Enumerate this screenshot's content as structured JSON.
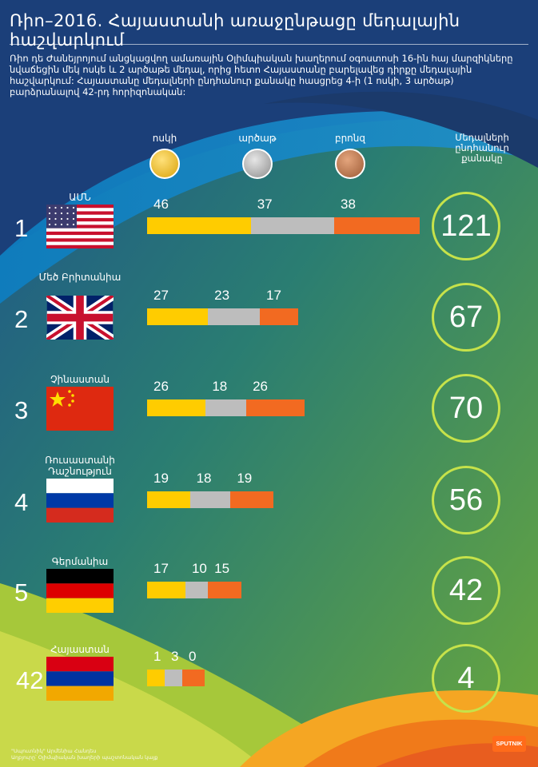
{
  "header": {
    "title": "Ռիո–2016. Հայաստանի առաջընթացը մեդալային հաշվարկում",
    "intro": "Ռիո դե Ժանեյրոյում անցկացվող ամառային Օլիմպիական խաղերում օգոստոսի 16-ին հայ մարզիկները նվաճեցին մեկ ոսկե և 2 արծաթե մեդալ, որից հետո Հայաստանը բարելավեց դիրքը մեդալային հաշվարկում: Հայաստանը մեդալների ընդհանուր քանակը հասցրեց 4-ի (1 ոսկի, 3 արծաթ) բարձրանալով 42-րդ հորիզոնական:"
  },
  "medals": {
    "gold": "ոսկի",
    "silver": "արծաթ",
    "bronze": "բրոնզ",
    "total": "Մեդալների ընդհանուր քանակը"
  },
  "colors": {
    "gold": "#ffcc00",
    "silver": "#bdbdbd",
    "bronze": "#f26a21",
    "ring": "#c6e24a"
  },
  "rows": [
    {
      "rank": "1",
      "country": "ԱՄՆ",
      "flag": "usa-flag",
      "gold": 46,
      "silver": 37,
      "bronze": 38,
      "total": "121"
    },
    {
      "rank": "2",
      "country": "Մեծ Բրիտանիա",
      "flag": "uk-flag",
      "gold": 27,
      "silver": 23,
      "bronze": 17,
      "total": "67"
    },
    {
      "rank": "3",
      "country": "Չինաստան",
      "flag": "china-flag",
      "gold": 26,
      "silver": 18,
      "bronze": 26,
      "total": "70"
    },
    {
      "rank": "4",
      "country": "Ռուսաստանի Դաշնություն",
      "flag": "russia-flag",
      "gold": 19,
      "silver": 18,
      "bronze": 19,
      "total": "56"
    },
    {
      "rank": "5",
      "country": "Գերմանիա",
      "flag": "germany-flag",
      "gold": 17,
      "silver": 10,
      "bronze": 15,
      "total": "42"
    },
    {
      "rank": "42",
      "country": "Հայաստան",
      "flag": "armenia-flag",
      "gold": 1,
      "silver": 3,
      "bronze": 0,
      "total": "4"
    }
  ],
  "chart_data": {
    "type": "bar",
    "stacked": true,
    "orientation": "horizontal",
    "categories": [
      "ԱՄՆ",
      "Մեծ Բրիտանիա",
      "Չինաստան",
      "Ռուսաստանի Դաշնություն",
      "Գերմանիա",
      "Հայաստան"
    ],
    "series": [
      {
        "name": "ոսկի",
        "values": [
          46,
          27,
          26,
          19,
          17,
          1
        ]
      },
      {
        "name": "արծաթ",
        "values": [
          37,
          23,
          18,
          18,
          10,
          3
        ]
      },
      {
        "name": "բրոնզ",
        "values": [
          38,
          17,
          26,
          19,
          15,
          0
        ]
      }
    ],
    "totals": [
      121,
      67,
      70,
      56,
      42,
      4
    ],
    "ranks": [
      1,
      2,
      3,
      4,
      5,
      42
    ]
  },
  "footer": {
    "line1": "\"Սպուտնիկ\" Արմենիա Հանդես",
    "line2": "Աղբյուրը՝ Օլիմպիական խաղերի պաշտոնական կայք",
    "logo": "SPUTNIK"
  }
}
